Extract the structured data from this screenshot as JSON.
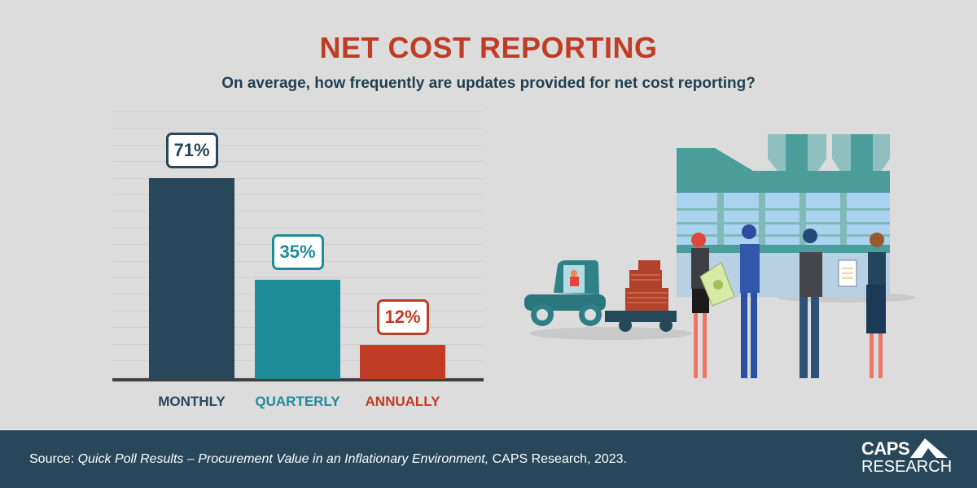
{
  "header": {
    "title": "NET COST REPORTING",
    "subtitle": "On average, how frequently are updates provided for net cost reporting?"
  },
  "chart_data": {
    "type": "bar",
    "title": "NET COST REPORTING",
    "subtitle": "On average, how frequently are updates provided for net cost reporting?",
    "categories": [
      "MONTHLY",
      "QUARTERLY",
      "ANNUALLY"
    ],
    "values": [
      71,
      35,
      12
    ],
    "value_labels": [
      "71%",
      "35%",
      "12%"
    ],
    "colors": [
      "#29475a",
      "#1e8b99",
      "#c03c24"
    ],
    "xlabel": "",
    "ylabel": "",
    "ylim": [
      0,
      100
    ],
    "grid": true,
    "legend": "none"
  },
  "illustration": {
    "description": "Factory building with forklift towing a trailer of boxes, and four business people exchanging money, a handshake and a report",
    "report_label": "REPORT"
  },
  "footer": {
    "source_prefix": "Source: ",
    "source_title": "Quick Poll Results – Procurement Value in an Inflationary Environment,",
    "source_suffix": " CAPS Research, 2023.",
    "logo_line1": "CAPS",
    "logo_line2": "RESEARCH"
  }
}
